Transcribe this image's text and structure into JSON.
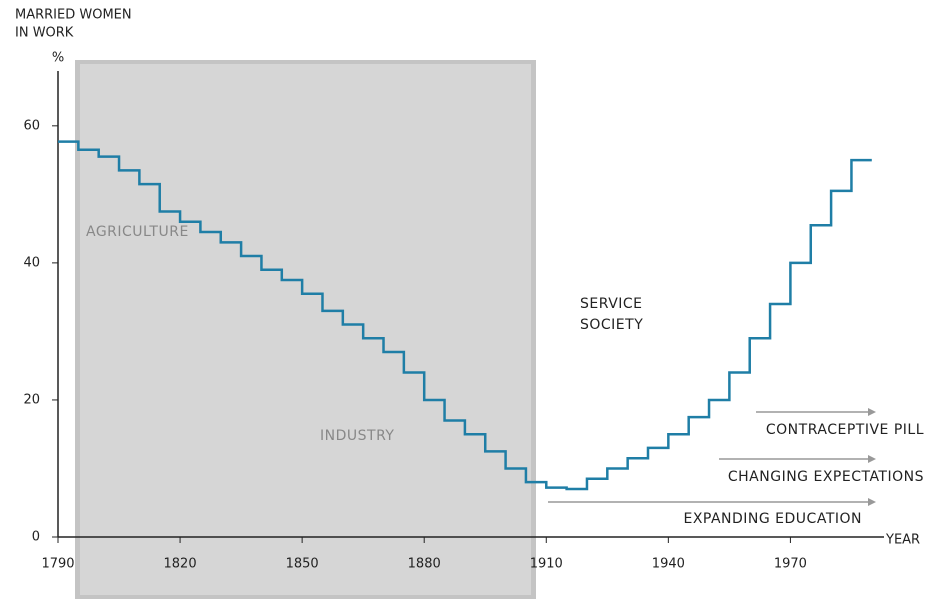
{
  "chart_data": {
    "type": "line",
    "step": "post",
    "y_label": [
      "MARRIED WOMEN",
      "IN WORK"
    ],
    "y_unit": "%",
    "x_label": "YEAR",
    "x": [
      1790,
      1795,
      1800,
      1805,
      1810,
      1815,
      1820,
      1825,
      1830,
      1835,
      1840,
      1845,
      1850,
      1855,
      1860,
      1865,
      1870,
      1875,
      1880,
      1885,
      1890,
      1895,
      1900,
      1905,
      1910,
      1915,
      1920,
      1925,
      1930,
      1935,
      1940,
      1945,
      1950,
      1955,
      1960,
      1965,
      1970,
      1975,
      1980,
      1985,
      1990
    ],
    "values": [
      57.7,
      56.5,
      55.5,
      53.5,
      51.5,
      47.5,
      46,
      44.5,
      43,
      41,
      39,
      37.5,
      35.5,
      33,
      31,
      29,
      27,
      24,
      20,
      17,
      15,
      12.5,
      10,
      8,
      7.2,
      7,
      8.5,
      10,
      11.5,
      13,
      15,
      17.5,
      20,
      24,
      29,
      34,
      40,
      45.5,
      50.5,
      55,
      55
    ],
    "color": "#1f7ea6",
    "xlim": [
      1790,
      1993
    ],
    "ylim": [
      0,
      68
    ],
    "xticks": [
      1790,
      1820,
      1850,
      1880,
      1910,
      1940,
      1970
    ],
    "yticks": [
      0,
      20,
      40,
      60
    ],
    "eras": [
      "AGRICULTURE",
      "INDUSTRY"
    ],
    "service": [
      "SERVICE",
      "SOCIETY"
    ],
    "drivers": [
      "CONTRACEPTIVE PILL",
      "CHANGING EXPECTATIONS",
      "EXPANDING EDUCATION"
    ]
  }
}
